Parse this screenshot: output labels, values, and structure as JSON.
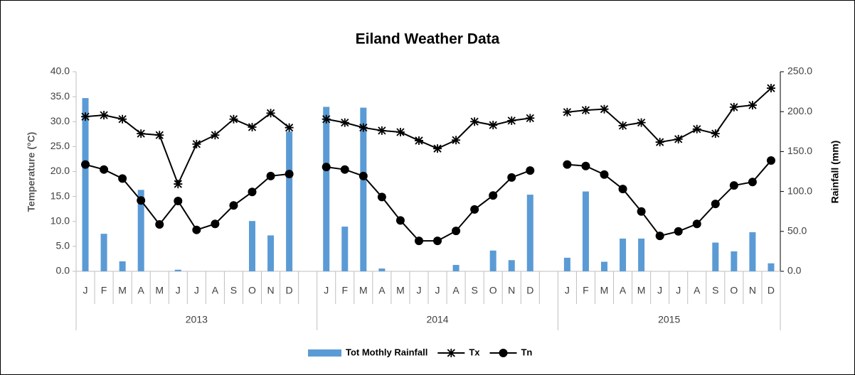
{
  "chart_data": {
    "type": "combo",
    "title": "Eiland Weather Data",
    "y_label": "Temperature (°C)",
    "y2_label": "Rainfall (mm)",
    "categories": [
      "J",
      "F",
      "M",
      "A",
      "M",
      "J",
      "J",
      "A",
      "S",
      "O",
      "N",
      "D",
      null,
      "J",
      "F",
      "M",
      "A",
      "M",
      "J",
      "J",
      "A",
      "S",
      "O",
      "N",
      "D",
      null,
      "J",
      "F",
      "M",
      "A",
      "M",
      "J",
      "J",
      "A",
      "S",
      "O",
      "N",
      "D"
    ],
    "groups": [
      "2013",
      "2014",
      "2015"
    ],
    "series": [
      {
        "name": "Tot Mothly Rainfall",
        "type": "bar",
        "axis": "y2",
        "color": "#5b9bd5",
        "values": [
          217,
          47,
          12.5,
          102,
          0,
          2,
          0,
          0,
          0,
          63,
          45,
          175,
          null,
          206,
          56,
          205,
          3.5,
          0,
          0,
          0,
          8,
          0,
          26,
          14,
          96,
          null,
          17,
          100,
          12,
          41,
          41,
          0,
          0,
          0,
          36,
          25,
          49,
          10
        ]
      },
      {
        "name": "Tx",
        "type": "line",
        "marker": "star",
        "color": "#000000",
        "values": [
          31.0,
          31.3,
          30.5,
          27.6,
          27.3,
          17.5,
          25.5,
          27.3,
          30.5,
          28.9,
          31.7,
          28.8,
          null,
          30.5,
          29.8,
          28.8,
          28.2,
          27.9,
          26.2,
          24.6,
          26.3,
          30.0,
          29.3,
          30.2,
          30.7,
          null,
          31.9,
          32.3,
          32.5,
          29.2,
          29.8,
          25.9,
          26.5,
          28.5,
          27.6,
          32.9,
          33.3,
          36.7
        ]
      },
      {
        "name": "Tn",
        "type": "line",
        "marker": "circle",
        "color": "#000000",
        "values": [
          21.4,
          20.4,
          18.6,
          14.2,
          9.4,
          14.1,
          8.3,
          9.5,
          13.2,
          15.9,
          19.1,
          19.5,
          null,
          20.9,
          20.4,
          19.1,
          14.9,
          10.2,
          6.1,
          6.1,
          8.1,
          12.4,
          15.2,
          18.8,
          20.2,
          null,
          21.4,
          21.1,
          19.4,
          16.5,
          12.0,
          7.1,
          8.0,
          9.5,
          13.5,
          17.2,
          17.9,
          22.2
        ]
      }
    ],
    "ylim": [
      0,
      40
    ],
    "yticks": [
      {
        "value": 0,
        "label": "0.0"
      },
      {
        "value": 5,
        "label": "5.0"
      },
      {
        "value": 10,
        "label": "10.0"
      },
      {
        "value": 15,
        "label": "15.0"
      },
      {
        "value": 20,
        "label": "20.0"
      },
      {
        "value": 25,
        "label": "25.0"
      },
      {
        "value": 30,
        "label": "30.0"
      },
      {
        "value": 35,
        "label": "35.0"
      },
      {
        "value": 40,
        "label": "40.0"
      }
    ],
    "y2lim": [
      0,
      250
    ],
    "y2ticks": [
      {
        "value": 0,
        "label": "0.0"
      },
      {
        "value": 50,
        "label": "50.0"
      },
      {
        "value": 100,
        "label": "100.0"
      },
      {
        "value": 150,
        "label": "150.0"
      },
      {
        "value": 200,
        "label": "200.0"
      },
      {
        "value": 250,
        "label": "250.0"
      }
    ],
    "legend": "bottom",
    "grid": false
  }
}
